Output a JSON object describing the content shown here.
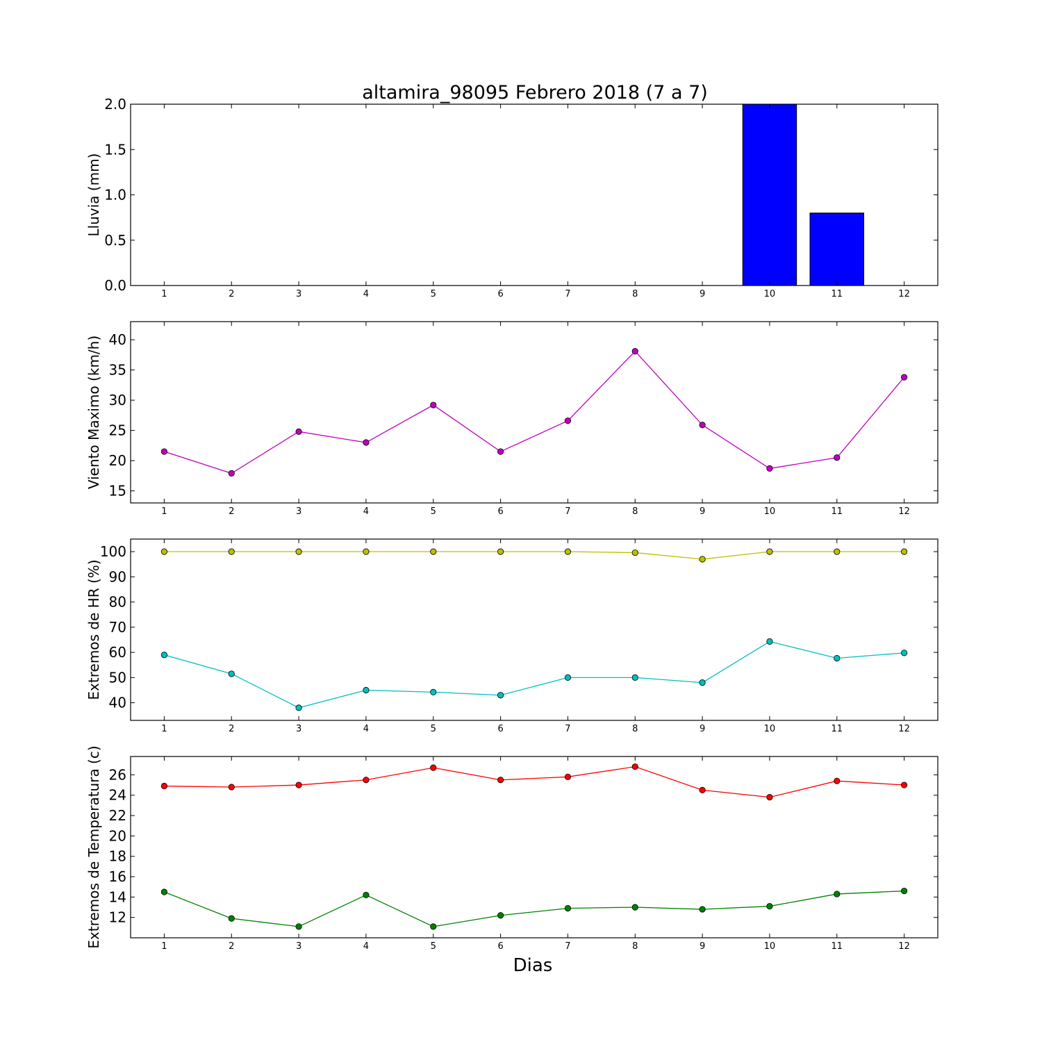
{
  "chart_data": [
    {
      "type": "bar",
      "title": "altamira_98095 Febrero 2018  (7 a 7)",
      "ylabel": "Lluvia (mm)",
      "categories": [
        1,
        2,
        3,
        4,
        5,
        6,
        7,
        8,
        9,
        10,
        11,
        12
      ],
      "values": [
        0,
        0,
        0,
        0,
        0,
        0,
        0,
        0,
        0,
        2.0,
        0.8,
        0
      ],
      "ylim": [
        0,
        2.0
      ],
      "yticks": [
        0.0,
        0.5,
        1.0,
        1.5,
        2.0
      ],
      "ytick_labels": [
        "0.0",
        "0.5",
        "1.0",
        "1.5",
        "2.0"
      ],
      "color": "#0000ff"
    },
    {
      "type": "line",
      "ylabel": "Viento Maximo (km/h)",
      "x": [
        1,
        2,
        3,
        4,
        5,
        6,
        7,
        8,
        9,
        10,
        11,
        12
      ],
      "series": [
        {
          "values": [
            21.5,
            17.9,
            24.8,
            23.0,
            29.2,
            21.5,
            26.6,
            38.1,
            25.9,
            18.7,
            20.5,
            33.8
          ],
          "color": "#bf00bf"
        }
      ],
      "ylim": [
        13,
        43
      ],
      "yticks": [
        15,
        20,
        25,
        30,
        35,
        40
      ],
      "ytick_labels": [
        "15",
        "20",
        "25",
        "30",
        "35",
        "40"
      ]
    },
    {
      "type": "line",
      "ylabel": "Extremos de HR (%)",
      "x": [
        1,
        2,
        3,
        4,
        5,
        6,
        7,
        8,
        9,
        10,
        11,
        12
      ],
      "series": [
        {
          "values": [
            100,
            100,
            100,
            100,
            100,
            100,
            100,
            99.6,
            97,
            100,
            100,
            100
          ],
          "color": "#bfbf00"
        },
        {
          "values": [
            59,
            51.5,
            38,
            45,
            44.2,
            43,
            50,
            50,
            48,
            64.3,
            57.7,
            59.8
          ],
          "color": "#00bfbf"
        }
      ],
      "ylim": [
        33,
        105
      ],
      "yticks": [
        40,
        50,
        60,
        70,
        80,
        90,
        100
      ],
      "ytick_labels": [
        "40",
        "50",
        "60",
        "70",
        "80",
        "90",
        "100"
      ]
    },
    {
      "type": "line",
      "ylabel": "Extremos de Temperatura (c)",
      "xlabel": "Dias",
      "x": [
        1,
        2,
        3,
        4,
        5,
        6,
        7,
        8,
        9,
        10,
        11,
        12
      ],
      "series": [
        {
          "values": [
            24.9,
            24.8,
            25.0,
            25.5,
            26.7,
            25.5,
            25.8,
            26.8,
            24.5,
            23.8,
            25.4,
            25.0
          ],
          "color": "#ff0000"
        },
        {
          "values": [
            14.5,
            11.9,
            11.1,
            14.2,
            11.1,
            12.2,
            12.9,
            13.0,
            12.8,
            13.1,
            14.3,
            14.6
          ],
          "color": "#008000"
        }
      ],
      "ylim": [
        10,
        27.8
      ],
      "yticks": [
        12,
        14,
        16,
        18,
        20,
        22,
        24,
        26
      ],
      "ytick_labels": [
        "12",
        "14",
        "16",
        "18",
        "20",
        "22",
        "24",
        "26"
      ]
    }
  ]
}
